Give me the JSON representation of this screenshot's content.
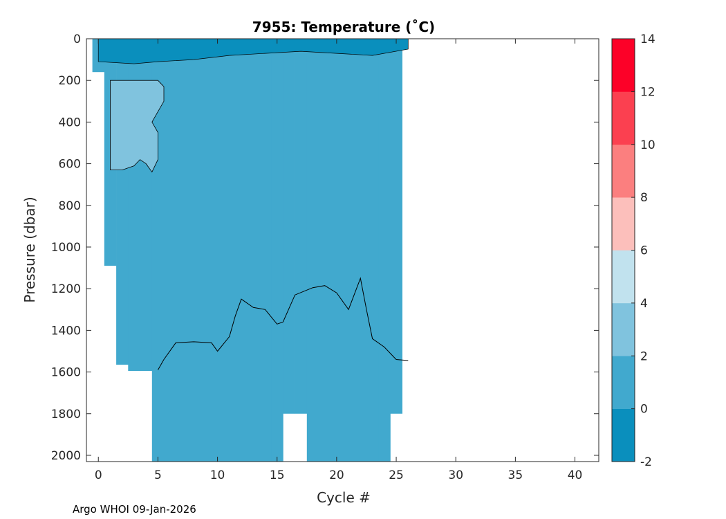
{
  "chart_data": {
    "type": "heatmap",
    "title": "7955:  Temperature (˚C)",
    "xlabel": "Cycle #",
    "ylabel": "Pressure (dbar)",
    "xlim": [
      -1,
      42
    ],
    "ylim": [
      0,
      2030
    ],
    "y_reversed": true,
    "xticks": [
      0,
      5,
      10,
      15,
      20,
      25,
      30,
      35,
      40
    ],
    "yticks": [
      0,
      200,
      400,
      600,
      800,
      1000,
      1200,
      1400,
      1600,
      1800,
      2000
    ],
    "colorbar": {
      "range": [
        -2,
        14
      ],
      "ticks": [
        -2,
        0,
        2,
        4,
        6,
        8,
        10,
        12,
        14
      ],
      "levels": [
        {
          "from": -2,
          "to": 0,
          "color": "#0a8fbd"
        },
        {
          "from": 0,
          "to": 2,
          "color": "#41a9ce"
        },
        {
          "from": 2,
          "to": 4,
          "color": "#80c3de"
        },
        {
          "from": 4,
          "to": 6,
          "color": "#c1e2ee"
        },
        {
          "from": 6,
          "to": 8,
          "color": "#fcbfbb"
        },
        {
          "from": 8,
          "to": 10,
          "color": "#fb7f7f"
        },
        {
          "from": 10,
          "to": 12,
          "color": "#fb4050"
        },
        {
          "from": 12,
          "to": 14,
          "color": "#fc0128"
        }
      ]
    },
    "profiles": [
      {
        "cycle": 0,
        "max_pressure": 160
      },
      {
        "cycle": 1,
        "max_pressure": 1090
      },
      {
        "cycle": 2,
        "max_pressure": 1565
      },
      {
        "cycle": 3,
        "max_pressure": 1595
      },
      {
        "cycle": 4,
        "max_pressure": 1595
      },
      {
        "cycle": 5,
        "max_pressure": 2030
      },
      {
        "cycle": 10,
        "max_pressure": 2030
      },
      {
        "cycle": 15,
        "max_pressure": 2030
      },
      {
        "cycle": 16,
        "max_pressure": 1800
      },
      {
        "cycle": 17,
        "max_pressure": 1800
      },
      {
        "cycle": 18,
        "max_pressure": 2030
      },
      {
        "cycle": 24,
        "max_pressure": 2030
      },
      {
        "cycle": 25,
        "max_pressure": 1800
      }
    ],
    "contour_0C_deep": [
      [
        5,
        1590
      ],
      [
        5.5,
        1540
      ],
      [
        6.5,
        1460
      ],
      [
        8,
        1455
      ],
      [
        9.5,
        1460
      ],
      [
        10,
        1500
      ],
      [
        11,
        1430
      ],
      [
        11.5,
        1330
      ],
      [
        12,
        1250
      ],
      [
        13,
        1290
      ],
      [
        14,
        1300
      ],
      [
        15,
        1370
      ],
      [
        15.5,
        1360
      ],
      [
        16.5,
        1230
      ],
      [
        18,
        1195
      ],
      [
        19,
        1185
      ],
      [
        20,
        1220
      ],
      [
        21,
        1300
      ],
      [
        22,
        1150
      ],
      [
        22.5,
        1300
      ],
      [
        23,
        1440
      ],
      [
        24,
        1480
      ],
      [
        25,
        1540
      ],
      [
        26,
        1545
      ]
    ],
    "contour_2C": [
      [
        1,
        630
      ],
      [
        2,
        630
      ],
      [
        3,
        610
      ],
      [
        3.5,
        580
      ],
      [
        4,
        600
      ],
      [
        4.5,
        640
      ],
      [
        5,
        580
      ],
      [
        5,
        450
      ],
      [
        4.5,
        400
      ],
      [
        5.5,
        300
      ],
      [
        5.5,
        230
      ],
      [
        5,
        200
      ],
      [
        1,
        200
      ]
    ]
  },
  "footer": "Argo WHOI 09-Jan-2026"
}
